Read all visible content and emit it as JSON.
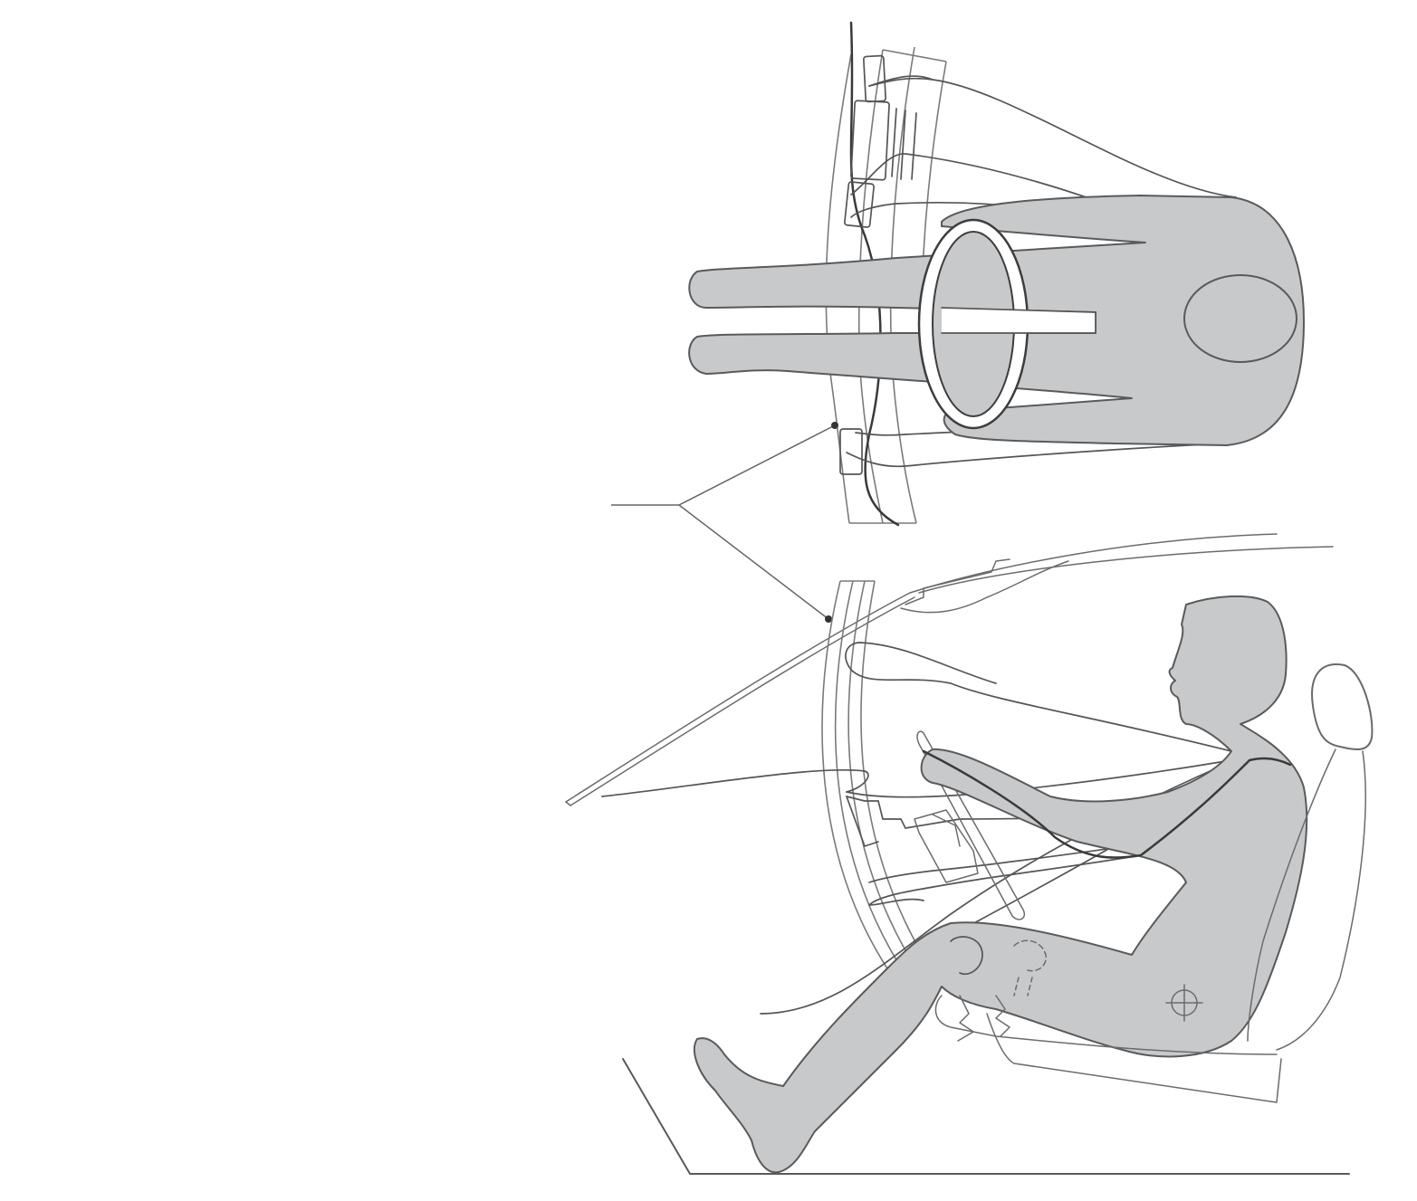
{
  "diagram": {
    "views": [
      "top-view",
      "side-view"
    ],
    "colors": {
      "body_fill": "#c8c9cb",
      "line": "#5a5a5a",
      "background": "#ffffff"
    },
    "callout_label": ""
  }
}
